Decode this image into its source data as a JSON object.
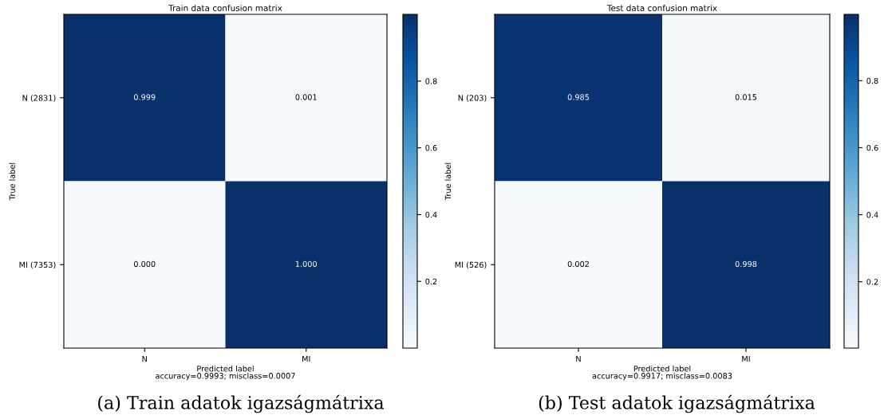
{
  "chart_data": [
    {
      "type": "heatmap",
      "title": "Train data confusion matrix",
      "xlabel": "Predicted label\naccuracy=0.9993; misclass=0.0007",
      "ylabel": "True label",
      "categories": [
        "N",
        "MI"
      ],
      "y_categories": [
        "N (2831)",
        "MI (7353)"
      ],
      "cells": [
        [
          0.999,
          0.001
        ],
        [
          0.0,
          1.0
        ]
      ],
      "cell_labels": [
        [
          "0.999",
          "0.001"
        ],
        [
          "0.000",
          "1.000"
        ]
      ],
      "clim": [
        0.0,
        1.0
      ],
      "cticks": [
        0.2,
        0.4,
        0.6,
        0.8
      ],
      "grid": false,
      "annotations": [
        "(a) Train adatok igazságmátrixa"
      ]
    },
    {
      "type": "heatmap",
      "title": "Test data confusion matrix",
      "xlabel": "Predicted label\naccuracy=0.9917; misclass=0.0083",
      "ylabel": "True label",
      "categories": [
        "N",
        "MI"
      ],
      "y_categories": [
        "N (203)",
        "MI (526)"
      ],
      "cells": [
        [
          0.985,
          0.015
        ],
        [
          0.002,
          0.998
        ]
      ],
      "cell_labels": [
        [
          "0.985",
          "0.015"
        ],
        [
          "0.002",
          "0.998"
        ]
      ],
      "clim": [
        0.002,
        0.998
      ],
      "cticks": [
        0.2,
        0.4,
        0.6,
        0.8
      ],
      "grid": false,
      "annotations": [
        "(b) Test adatok igazságmátrixa"
      ]
    }
  ]
}
